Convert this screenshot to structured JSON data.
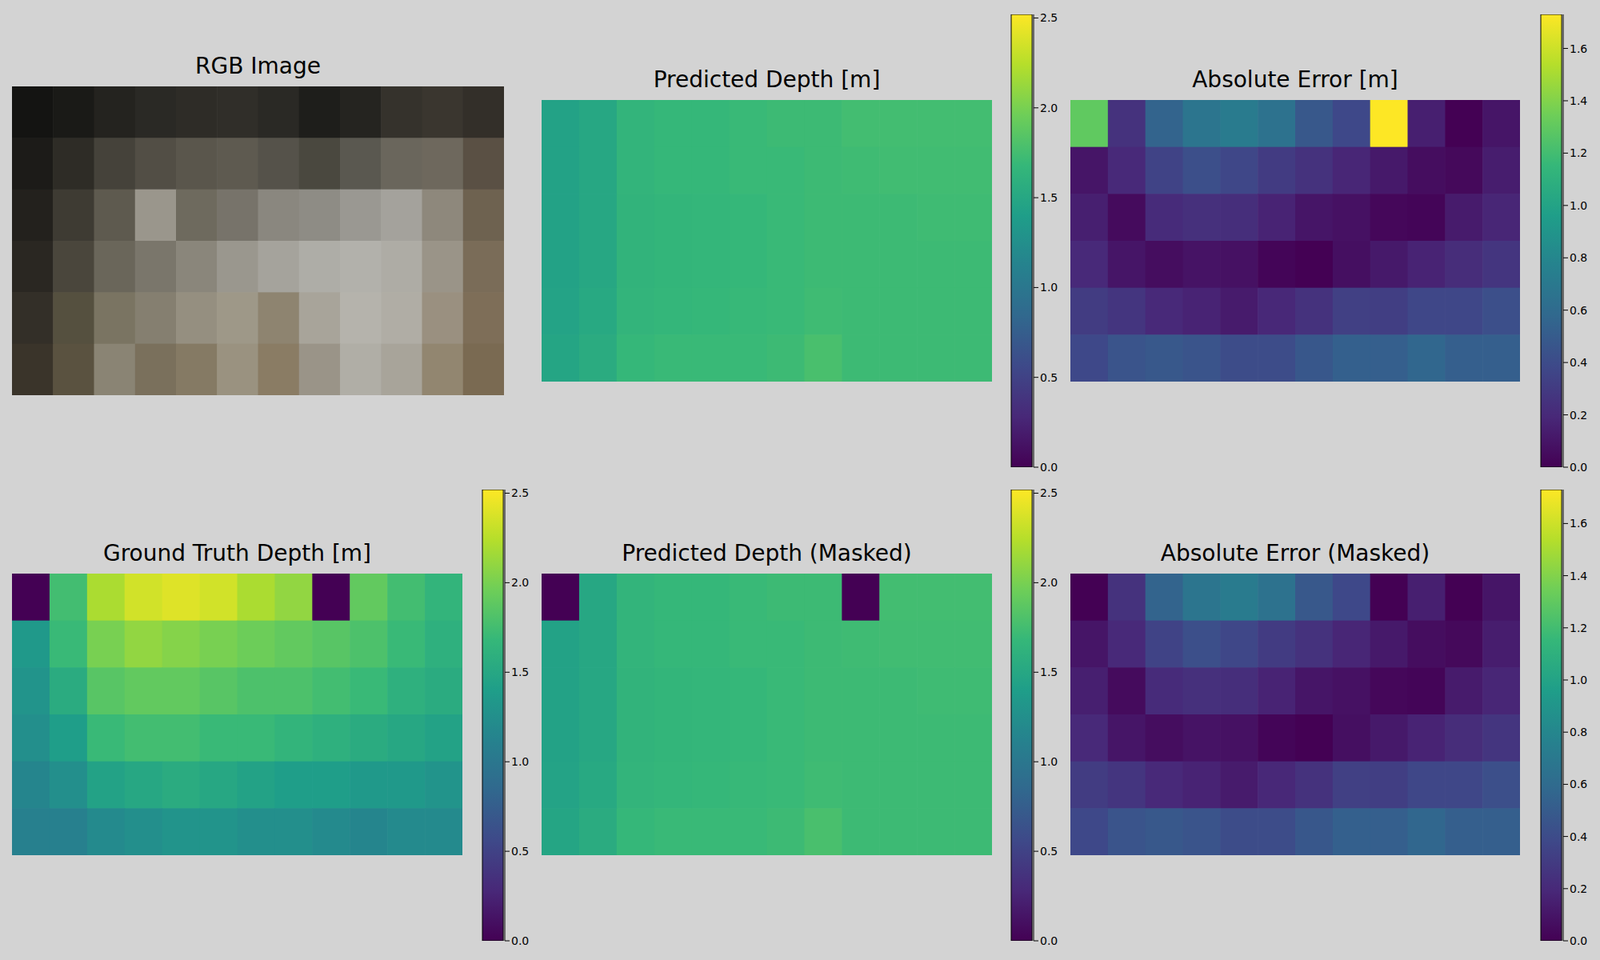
{
  "chart_data": [
    {
      "type": "image",
      "title": "RGB Image",
      "tick_labels": false,
      "colors": [
        [
          "#141412",
          "#1a1a17",
          "#24231f",
          "#2a2925",
          "#2e2c27",
          "#302e29",
          "#2a2925",
          "#1e1e1b",
          "#252420",
          "#35322c",
          "#3a362f",
          "#332f29"
        ],
        [
          "#1c1b18",
          "#2e2c26",
          "#45423a",
          "#524e45",
          "#5a564c",
          "#5e5a50",
          "#55524a",
          "#4a483f",
          "#5a5850",
          "#6a665c",
          "#6e685d",
          "#5a5044"
        ],
        [
          "#23211d",
          "#3e3b33",
          "#5e5a4f",
          "#9a968c",
          "#6e6a5e",
          "#77736a",
          "#8a877f",
          "#8e8c85",
          "#9a9892",
          "#a4a29c",
          "#8e887c",
          "#6e6250"
        ],
        [
          "#2a2722",
          "#4a463c",
          "#6a665a",
          "#7a766b",
          "#8a867b",
          "#9a978e",
          "#a5a39c",
          "#aeada7",
          "#b2b1ab",
          "#aeaca5",
          "#9a9488",
          "#7a6c58"
        ],
        [
          "#332f28",
          "#55503f",
          "#7a7462",
          "#857f70",
          "#958f80",
          "#9e9888",
          "#8e8470",
          "#a8a49a",
          "#b5b3ac",
          "#b0ada5",
          "#9a9080",
          "#7e6e58"
        ],
        [
          "#3a342a",
          "#5a5240",
          "#8a8474",
          "#7a705c",
          "#857a64",
          "#9a9280",
          "#8a7c64",
          "#9a9488",
          "#b0aea6",
          "#a8a49a",
          "#928670",
          "#7a6a52"
        ]
      ]
    },
    {
      "type": "heatmap",
      "title": "Predicted Depth [m]",
      "tick_labels": false,
      "cells": [
        [
          1.45,
          1.5,
          1.65,
          1.68,
          1.68,
          1.7,
          1.72,
          1.72,
          1.75,
          1.75,
          1.75,
          1.75
        ],
        [
          1.45,
          1.5,
          1.65,
          1.68,
          1.68,
          1.7,
          1.7,
          1.72,
          1.73,
          1.74,
          1.74,
          1.74
        ],
        [
          1.45,
          1.5,
          1.64,
          1.66,
          1.67,
          1.68,
          1.7,
          1.72,
          1.72,
          1.72,
          1.73,
          1.73
        ],
        [
          1.45,
          1.5,
          1.64,
          1.66,
          1.67,
          1.68,
          1.7,
          1.72,
          1.72,
          1.72,
          1.72,
          1.72
        ],
        [
          1.46,
          1.52,
          1.65,
          1.67,
          1.68,
          1.69,
          1.7,
          1.73,
          1.72,
          1.72,
          1.72,
          1.72
        ],
        [
          1.48,
          1.55,
          1.68,
          1.7,
          1.7,
          1.7,
          1.72,
          1.78,
          1.72,
          1.72,
          1.72,
          1.72
        ]
      ],
      "colorbar": {
        "range": [
          0,
          2.52
        ],
        "ticks": [
          {
            "value": 0,
            "label": "0.0"
          },
          {
            "value": 0.5,
            "label": "0.5"
          },
          {
            "value": 1,
            "label": "1.0"
          },
          {
            "value": 1.5,
            "label": "1.5"
          },
          {
            "value": 2,
            "label": "2.0"
          },
          {
            "value": 2.5,
            "label": "2.5"
          }
        ]
      }
    },
    {
      "type": "heatmap",
      "title": "Absolute Error [m]",
      "tick_labels": false,
      "cells": [
        [
          1.3,
          0.25,
          0.55,
          0.67,
          0.72,
          0.65,
          0.48,
          0.38,
          1.75,
          0.15,
          0.0,
          0.1
        ],
        [
          0.1,
          0.2,
          0.35,
          0.42,
          0.37,
          0.3,
          0.25,
          0.18,
          0.12,
          0.06,
          0.04,
          0.14
        ],
        [
          0.15,
          0.05,
          0.21,
          0.24,
          0.23,
          0.17,
          0.1,
          0.08,
          0.03,
          0.02,
          0.13,
          0.18
        ],
        [
          0.2,
          0.1,
          0.06,
          0.09,
          0.08,
          0.02,
          0.0,
          0.07,
          0.12,
          0.17,
          0.22,
          0.27
        ],
        [
          0.31,
          0.27,
          0.2,
          0.17,
          0.13,
          0.19,
          0.25,
          0.33,
          0.32,
          0.37,
          0.37,
          0.42
        ],
        [
          0.38,
          0.45,
          0.48,
          0.45,
          0.4,
          0.4,
          0.47,
          0.53,
          0.52,
          0.57,
          0.52,
          0.52
        ]
      ],
      "colorbar": {
        "range": [
          0,
          1.73
        ],
        "ticks": [
          {
            "value": 0,
            "label": "0.0"
          },
          {
            "value": 0.2,
            "label": "0.2"
          },
          {
            "value": 0.4,
            "label": "0.4"
          },
          {
            "value": 0.6,
            "label": "0.6"
          },
          {
            "value": 0.8,
            "label": "0.8"
          },
          {
            "value": 1,
            "label": "1.0"
          },
          {
            "value": 1.2,
            "label": "1.2"
          },
          {
            "value": 1.4,
            "label": "1.4"
          },
          {
            "value": 1.6,
            "label": "1.6"
          }
        ]
      }
    },
    {
      "type": "heatmap",
      "title": "Ground Truth Depth [m]",
      "tick_labels": false,
      "cells": [
        [
          null,
          1.75,
          2.2,
          2.35,
          2.4,
          2.35,
          2.2,
          2.1,
          null,
          1.9,
          1.75,
          1.65
        ],
        [
          1.35,
          1.7,
          2.0,
          2.1,
          2.05,
          2.0,
          1.95,
          1.9,
          1.85,
          1.8,
          1.7,
          1.6
        ],
        [
          1.3,
          1.55,
          1.85,
          1.9,
          1.9,
          1.85,
          1.8,
          1.8,
          1.75,
          1.7,
          1.6,
          1.55
        ],
        [
          1.25,
          1.4,
          1.7,
          1.75,
          1.75,
          1.7,
          1.7,
          1.65,
          1.6,
          1.55,
          1.5,
          1.45
        ],
        [
          1.15,
          1.25,
          1.45,
          1.5,
          1.55,
          1.5,
          1.45,
          1.4,
          1.4,
          1.35,
          1.35,
          1.3
        ],
        [
          1.1,
          1.1,
          1.2,
          1.25,
          1.3,
          1.3,
          1.25,
          1.25,
          1.2,
          1.15,
          1.2,
          1.2
        ]
      ],
      "colorbar": {
        "range": [
          0,
          2.52
        ],
        "ticks": [
          {
            "value": 0,
            "label": "0.0"
          },
          {
            "value": 0.5,
            "label": "0.5"
          },
          {
            "value": 1,
            "label": "1.0"
          },
          {
            "value": 1.5,
            "label": "1.5"
          },
          {
            "value": 2,
            "label": "2.0"
          },
          {
            "value": 2.5,
            "label": "2.5"
          }
        ]
      }
    },
    {
      "type": "heatmap",
      "title": "Predicted Depth (Masked)",
      "tick_labels": false,
      "cells": [
        [
          null,
          1.5,
          1.65,
          1.68,
          1.68,
          1.7,
          1.72,
          1.72,
          null,
          1.75,
          1.75,
          1.75
        ],
        [
          1.45,
          1.5,
          1.65,
          1.68,
          1.68,
          1.7,
          1.7,
          1.72,
          1.73,
          1.74,
          1.74,
          1.74
        ],
        [
          1.45,
          1.5,
          1.64,
          1.66,
          1.67,
          1.68,
          1.7,
          1.72,
          1.72,
          1.72,
          1.73,
          1.73
        ],
        [
          1.45,
          1.5,
          1.64,
          1.66,
          1.67,
          1.68,
          1.7,
          1.72,
          1.72,
          1.72,
          1.72,
          1.72
        ],
        [
          1.46,
          1.52,
          1.65,
          1.67,
          1.68,
          1.69,
          1.7,
          1.73,
          1.72,
          1.72,
          1.72,
          1.72
        ],
        [
          1.48,
          1.55,
          1.68,
          1.7,
          1.7,
          1.7,
          1.72,
          1.78,
          1.72,
          1.72,
          1.72,
          1.72
        ]
      ],
      "colorbar": {
        "range": [
          0,
          2.52
        ],
        "ticks": [
          {
            "value": 0,
            "label": "0.0"
          },
          {
            "value": 0.5,
            "label": "0.5"
          },
          {
            "value": 1,
            "label": "1.0"
          },
          {
            "value": 1.5,
            "label": "1.5"
          },
          {
            "value": 2,
            "label": "2.0"
          },
          {
            "value": 2.5,
            "label": "2.5"
          }
        ]
      }
    },
    {
      "type": "heatmap",
      "title": "Absolute Error (Masked)",
      "tick_labels": false,
      "cells": [
        [
          null,
          0.25,
          0.55,
          0.67,
          0.72,
          0.65,
          0.48,
          0.38,
          null,
          0.15,
          0.0,
          0.1
        ],
        [
          0.1,
          0.2,
          0.35,
          0.42,
          0.37,
          0.3,
          0.25,
          0.18,
          0.12,
          0.06,
          0.04,
          0.14
        ],
        [
          0.15,
          0.05,
          0.21,
          0.24,
          0.23,
          0.17,
          0.1,
          0.08,
          0.03,
          0.02,
          0.13,
          0.18
        ],
        [
          0.2,
          0.1,
          0.06,
          0.09,
          0.08,
          0.02,
          0.0,
          0.07,
          0.12,
          0.17,
          0.22,
          0.27
        ],
        [
          0.31,
          0.27,
          0.2,
          0.17,
          0.13,
          0.19,
          0.25,
          0.33,
          0.32,
          0.37,
          0.37,
          0.42
        ],
        [
          0.38,
          0.45,
          0.48,
          0.45,
          0.4,
          0.4,
          0.47,
          0.53,
          0.52,
          0.57,
          0.52,
          0.52
        ]
      ],
      "colorbar": {
        "range": [
          0,
          1.73
        ],
        "ticks": [
          {
            "value": 0,
            "label": "0.0"
          },
          {
            "value": 0.2,
            "label": "0.2"
          },
          {
            "value": 0.4,
            "label": "0.4"
          },
          {
            "value": 0.6,
            "label": "0.6"
          },
          {
            "value": 0.8,
            "label": "0.8"
          },
          {
            "value": 1,
            "label": "1.0"
          },
          {
            "value": 1.2,
            "label": "1.2"
          },
          {
            "value": 1.4,
            "label": "1.4"
          },
          {
            "value": 1.6,
            "label": "1.6"
          }
        ]
      }
    }
  ]
}
